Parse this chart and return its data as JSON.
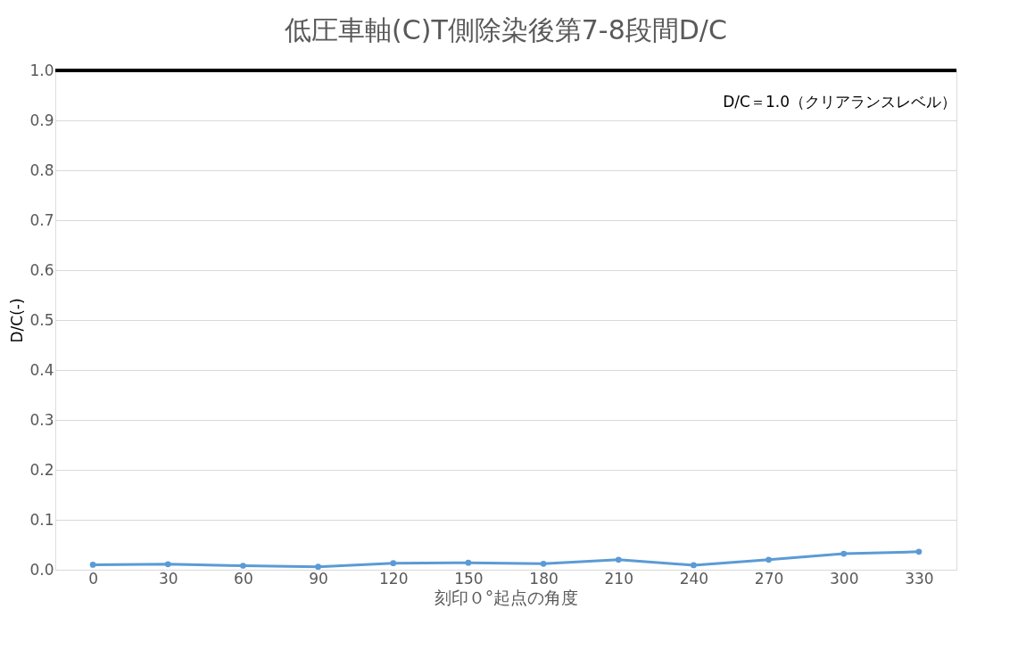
{
  "chart_data": {
    "type": "line",
    "title": "低圧車軸(C)T側除染後第7-8段間D/C",
    "xlabel": "刻印０°起点の角度",
    "ylabel": "D/C(-)",
    "categories": [
      "0",
      "30",
      "60",
      "90",
      "120",
      "150",
      "180",
      "210",
      "240",
      "270",
      "300",
      "330"
    ],
    "series": [
      {
        "color": "#5b9bd5",
        "values": [
          0.01,
          0.011,
          0.008,
          0.006,
          0.013,
          0.014,
          0.012,
          0.02,
          0.009,
          0.02,
          0.032,
          0.036
        ]
      }
    ],
    "ylim": [
      0,
      1.0
    ],
    "yticks": [
      {
        "value": 0,
        "label": "0.0"
      },
      0.1,
      0.2,
      0.3,
      0.4,
      0.5,
      0.6,
      0.7,
      0.8,
      0.9,
      {
        "value": 1.0,
        "label": "1.0"
      }
    ],
    "ref_lines": [
      {
        "axis": "y",
        "value": 1.0,
        "label": "D/C＝1.0（クリアランスレベル）",
        "color": "#000000",
        "line_style": "solid"
      }
    ],
    "grid": "y",
    "marker": "circle",
    "line_style": "solid"
  }
}
